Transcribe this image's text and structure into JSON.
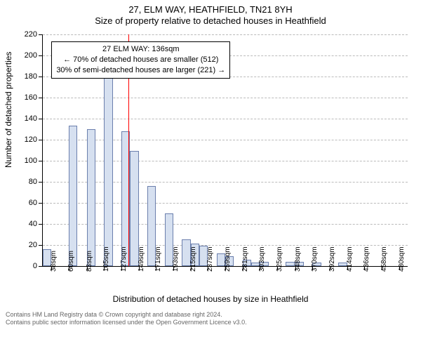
{
  "title_main": "27, ELM WAY, HEATHFIELD, TN21 8YH",
  "title_sub": "Size of property relative to detached houses in Heathfield",
  "y_axis_label": "Number of detached properties",
  "x_axis_label": "Distribution of detached houses by size in Heathfield",
  "chart": {
    "type": "histogram",
    "xmin": 27,
    "xmax": 491,
    "ylim": [
      0,
      220
    ],
    "ytick_step": 20,
    "bar_fill": "#d6e0f0",
    "bar_border": "#6b7fad",
    "grid_color": "#bbbbbb",
    "background_color": "#ffffff",
    "bin_width": 11,
    "x_ticks": [
      38,
      60,
      83,
      105,
      127,
      149,
      171,
      193,
      215,
      237,
      259,
      281,
      303,
      325,
      348,
      370,
      392,
      414,
      436,
      458,
      480
    ],
    "x_tick_labels": [
      "38sqm",
      "60sqm",
      "83sqm",
      "105sqm",
      "127sqm",
      "149sqm",
      "171sqm",
      "193sqm",
      "215sqm",
      "237sqm",
      "259sqm",
      "281sqm",
      "303sqm",
      "325sqm",
      "348sqm",
      "370sqm",
      "392sqm",
      "414sqm",
      "436sqm",
      "458sqm",
      "480sqm"
    ],
    "bins": [
      {
        "x": 27,
        "h": 16
      },
      {
        "x": 38,
        "h": 0
      },
      {
        "x": 49,
        "h": 0
      },
      {
        "x": 60,
        "h": 133
      },
      {
        "x": 71,
        "h": 0
      },
      {
        "x": 83,
        "h": 130
      },
      {
        "x": 94,
        "h": 0
      },
      {
        "x": 105,
        "h": 183
      },
      {
        "x": 116,
        "h": 0
      },
      {
        "x": 127,
        "h": 128
      },
      {
        "x": 138,
        "h": 109
      },
      {
        "x": 149,
        "h": 0
      },
      {
        "x": 160,
        "h": 76
      },
      {
        "x": 171,
        "h": 0
      },
      {
        "x": 182,
        "h": 50
      },
      {
        "x": 193,
        "h": 0
      },
      {
        "x": 204,
        "h": 25
      },
      {
        "x": 215,
        "h": 21
      },
      {
        "x": 226,
        "h": 19
      },
      {
        "x": 237,
        "h": 0
      },
      {
        "x": 248,
        "h": 12
      },
      {
        "x": 259,
        "h": 9
      },
      {
        "x": 270,
        "h": 0
      },
      {
        "x": 281,
        "h": 6
      },
      {
        "x": 292,
        "h": 3
      },
      {
        "x": 303,
        "h": 4
      },
      {
        "x": 314,
        "h": 0
      },
      {
        "x": 325,
        "h": 0
      },
      {
        "x": 336,
        "h": 4
      },
      {
        "x": 348,
        "h": 4
      },
      {
        "x": 359,
        "h": 0
      },
      {
        "x": 370,
        "h": 3
      },
      {
        "x": 381,
        "h": 0
      },
      {
        "x": 392,
        "h": 0
      },
      {
        "x": 403,
        "h": 3
      },
      {
        "x": 414,
        "h": 0
      },
      {
        "x": 425,
        "h": 0
      },
      {
        "x": 436,
        "h": 0
      },
      {
        "x": 447,
        "h": 0
      },
      {
        "x": 458,
        "h": 0
      },
      {
        "x": 469,
        "h": 0
      },
      {
        "x": 480,
        "h": 0
      }
    ],
    "ref_line": {
      "x": 136,
      "color": "#ff0000",
      "width": 1
    },
    "annotation": {
      "line1": "27 ELM WAY: 136sqm",
      "line2": "← 70% of detached houses are smaller (512)",
      "line3": "30% of semi-detached houses are larger (221) →",
      "box_left_x": 38,
      "box_top_y": 213
    }
  },
  "footer_line1": "Contains HM Land Registry data © Crown copyright and database right 2024.",
  "footer_line2": "Contains public sector information licensed under the Open Government Licence v3.0."
}
